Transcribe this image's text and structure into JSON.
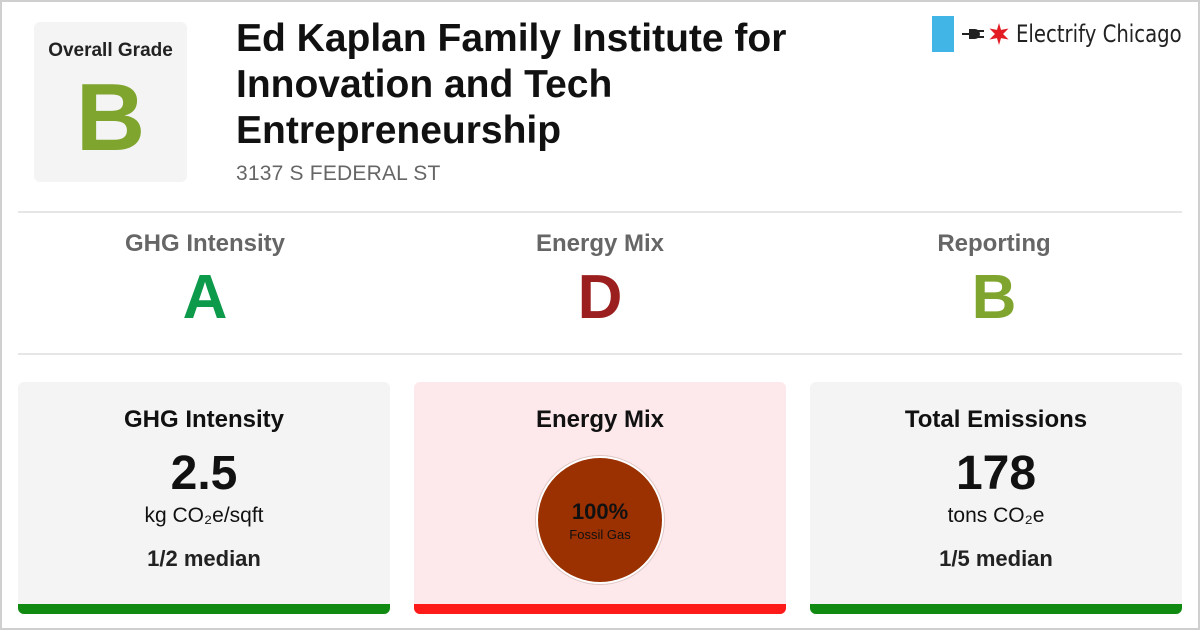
{
  "overall": {
    "label": "Overall Grade",
    "grade": "B"
  },
  "building": {
    "name": "Ed Kaplan Family Institute for Innovation and Tech Entrepreneurship",
    "address": "3137 S FEDERAL ST"
  },
  "brand": {
    "name": "Electrify Chicago",
    "icons": [
      "chicago-flag-bar-icon",
      "plug-icon",
      "chicago-star-icon"
    ],
    "flag_color": "#41b6e6",
    "star_color": "#e31b23"
  },
  "grades": [
    {
      "title": "GHG Intensity",
      "grade": "A",
      "color": "#0d9a4a"
    },
    {
      "title": "Energy Mix",
      "grade": "D",
      "color": "#9c1f1f"
    },
    {
      "title": "Reporting",
      "grade": "B",
      "color": "#7fa52e"
    }
  ],
  "cards": {
    "ghg": {
      "title": "GHG Intensity",
      "value": "2.5",
      "unit": "kg CO₂e/sqft",
      "median": "1/2 median",
      "bar_color": "#118a11"
    },
    "mix": {
      "title": "Energy Mix",
      "pct": "100%",
      "source": "Fossil Gas",
      "slice_color": "#9b3000",
      "bar_color": "#ff1a1a"
    },
    "emissions": {
      "title": "Total Emissions",
      "value": "178",
      "unit": "tons CO₂e",
      "median": "1/5 median",
      "bar_color": "#118a11"
    }
  }
}
